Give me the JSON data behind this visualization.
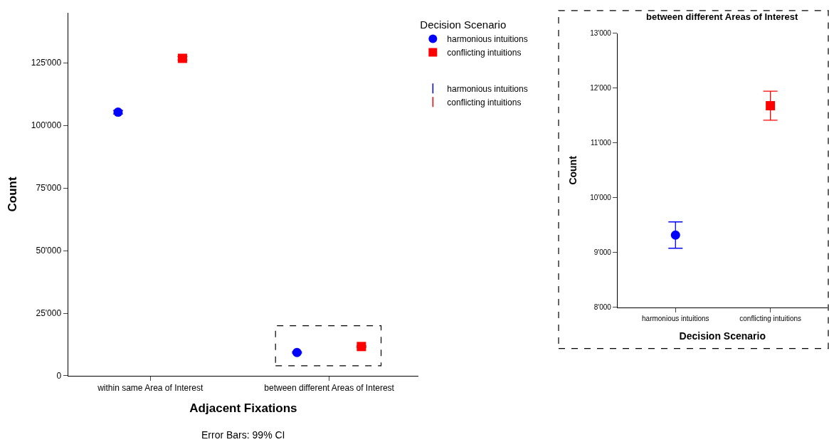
{
  "chart_data": [
    {
      "type": "scatter",
      "categories": [
        "within same Area of Interest",
        "between different Areas of Interest"
      ],
      "xlabel": "Adjacent Fixations",
      "ylabel": "Count",
      "legend_title": "Decision Scenario",
      "legend": "top right",
      "ylim": [
        0,
        145000
      ],
      "yticks": [
        {
          "value": 0,
          "label": "0"
        },
        {
          "value": 25000,
          "label": "25'000"
        },
        {
          "value": 50000,
          "label": "50'000"
        },
        {
          "value": 75000,
          "label": "75'000"
        },
        {
          "value": 100000,
          "label": "100'000"
        },
        {
          "value": 125000,
          "label": "125'000"
        }
      ],
      "series": [
        {
          "name": "harmonious intuitions",
          "color": "#0000ff",
          "marker": "circle",
          "values": [
            105300,
            9300
          ],
          "errors": [
            700,
            240
          ]
        },
        {
          "name": "conflicting intuitions",
          "color": "#ff0000",
          "marker": "square",
          "values": [
            126800,
            11700
          ],
          "errors": [
            700,
            265
          ]
        }
      ],
      "annotations": [
        "Error Bars: 99% CI"
      ]
    },
    {
      "type": "scatter",
      "title": "between different Areas of Interest",
      "categories": [
        "harmonious intuitions",
        "conflicting intuitions"
      ],
      "xlabel": "Decision Scenario",
      "ylabel": "Count",
      "ylim": [
        8000,
        13000
      ],
      "yticks": [
        {
          "value": 8000,
          "label": "8'000"
        },
        {
          "value": 9000,
          "label": "9'000"
        },
        {
          "value": 10000,
          "label": "10'000"
        },
        {
          "value": 11000,
          "label": "11'000"
        },
        {
          "value": 12000,
          "label": "12'000"
        },
        {
          "value": 13000,
          "label": "13'000"
        }
      ],
      "series": [
        {
          "color": "#0000ff",
          "marker": "circle",
          "values": [
            9320,
            null
          ],
          "errors": [
            240,
            null
          ]
        },
        {
          "color": "#ff0000",
          "marker": "square",
          "values": [
            null,
            11680
          ],
          "errors": [
            null,
            265
          ]
        }
      ]
    }
  ]
}
